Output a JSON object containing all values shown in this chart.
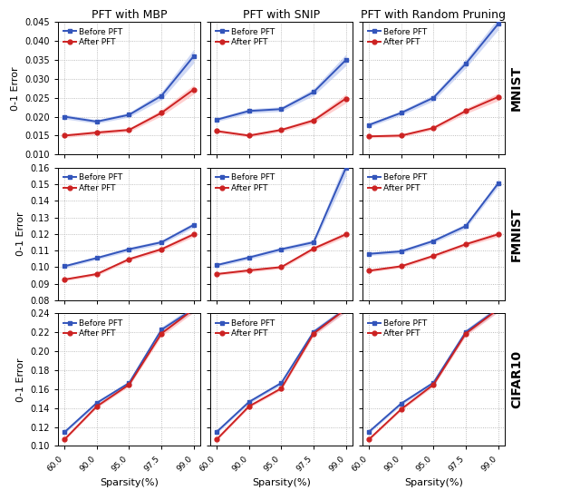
{
  "sparsity_labels": [
    "60.0",
    "90.0",
    "95.0",
    "97.5",
    "99.0"
  ],
  "col_titles": [
    "PFT with MBP",
    "PFT with SNIP",
    "PFT with Random Pruning"
  ],
  "row_labels": [
    "MNIST",
    "FMNIST",
    "CIFAR10"
  ],
  "xlabel": "Sparsity(%)",
  "ylabel": "0-1 Error",
  "blue_color": "#3355BB",
  "red_color": "#CC2222",
  "blue_fill": "#aabbee",
  "red_fill": "#ffaaaa",
  "data": {
    "MNIST": {
      "MBP": {
        "before_mean": [
          0.02,
          0.0187,
          0.0205,
          0.0255,
          0.036
        ],
        "before_std": [
          0.0006,
          0.0005,
          0.0006,
          0.001,
          0.0018
        ],
        "after_mean": [
          0.015,
          0.0158,
          0.0165,
          0.021,
          0.0272
        ],
        "after_std": [
          0.0005,
          0.0005,
          0.0005,
          0.0008,
          0.0012
        ]
      },
      "SNIP": {
        "before_mean": [
          0.0192,
          0.0215,
          0.022,
          0.0265,
          0.035
        ],
        "before_std": [
          0.0005,
          0.0006,
          0.0006,
          0.0009,
          0.0015
        ],
        "after_mean": [
          0.0162,
          0.015,
          0.0165,
          0.019,
          0.0248
        ],
        "after_std": [
          0.0004,
          0.0004,
          0.0005,
          0.0006,
          0.0012
        ]
      },
      "Random": {
        "before_mean": [
          0.0178,
          0.021,
          0.025,
          0.034,
          0.0445
        ],
        "before_std": [
          0.0005,
          0.0006,
          0.0008,
          0.0011,
          0.0016
        ],
        "after_mean": [
          0.0148,
          0.015,
          0.017,
          0.0215,
          0.0252
        ],
        "after_std": [
          0.0004,
          0.0004,
          0.0005,
          0.0007,
          0.001
        ]
      }
    },
    "FMNIST": {
      "MBP": {
        "before_mean": [
          0.1005,
          0.1055,
          0.1108,
          0.115,
          0.1255
        ],
        "before_std": [
          0.001,
          0.001,
          0.0012,
          0.0012,
          0.0015
        ],
        "after_mean": [
          0.0925,
          0.0958,
          0.1048,
          0.1108,
          0.1198
        ],
        "after_std": [
          0.0008,
          0.001,
          0.001,
          0.0012,
          0.0015
        ]
      },
      "SNIP": {
        "before_mean": [
          0.1012,
          0.1058,
          0.1108,
          0.115,
          0.16
        ],
        "before_std": [
          0.001,
          0.0012,
          0.0012,
          0.0015,
          0.005
        ],
        "after_mean": [
          0.0958,
          0.098,
          0.1,
          0.1112,
          0.1198
        ],
        "after_std": [
          0.0008,
          0.001,
          0.001,
          0.0012,
          0.0015
        ]
      },
      "Random": {
        "before_mean": [
          0.108,
          0.1095,
          0.1158,
          0.1248,
          0.1505
        ],
        "before_std": [
          0.001,
          0.0012,
          0.0012,
          0.0015,
          0.002
        ],
        "after_mean": [
          0.0978,
          0.1005,
          0.1068,
          0.1138,
          0.1198
        ],
        "after_std": [
          0.0008,
          0.001,
          0.001,
          0.0012,
          0.0015
        ]
      }
    },
    "CIFAR10": {
      "MBP": {
        "before_mean": [
          0.1145,
          0.1455,
          0.1665,
          0.2228,
          0.245
        ],
        "before_std": [
          0.0015,
          0.0018,
          0.002,
          0.003,
          0.0035
        ],
        "after_mean": [
          0.1068,
          0.1418,
          0.1648,
          0.2188,
          0.2445
        ],
        "after_std": [
          0.0012,
          0.0015,
          0.0018,
          0.0028,
          0.0033
        ]
      },
      "SNIP": {
        "before_mean": [
          0.1148,
          0.1465,
          0.1665,
          0.2205,
          0.245
        ],
        "before_std": [
          0.0015,
          0.0018,
          0.002,
          0.0028,
          0.0033
        ],
        "after_mean": [
          0.1068,
          0.1418,
          0.1608,
          0.2188,
          0.2448
        ],
        "after_std": [
          0.0012,
          0.0015,
          0.0018,
          0.0025,
          0.003
        ]
      },
      "Random": {
        "before_mean": [
          0.1148,
          0.1448,
          0.1668,
          0.2205,
          0.245
        ],
        "before_std": [
          0.0015,
          0.0018,
          0.002,
          0.0028,
          0.0033
        ],
        "after_mean": [
          0.1068,
          0.1388,
          0.1648,
          0.2188,
          0.2445
        ],
        "after_std": [
          0.0012,
          0.0015,
          0.0018,
          0.0025,
          0.003
        ]
      }
    }
  },
  "ylims": {
    "MNIST": [
      0.01,
      0.045
    ],
    "FMNIST": [
      0.08,
      0.16
    ],
    "CIFAR10": [
      0.1,
      0.24
    ]
  },
  "yticks": {
    "MNIST": [
      0.01,
      0.015,
      0.02,
      0.025,
      0.03,
      0.035,
      0.04,
      0.045
    ],
    "FMNIST": [
      0.08,
      0.09,
      0.1,
      0.11,
      0.12,
      0.13,
      0.14,
      0.15,
      0.16
    ],
    "CIFAR10": [
      0.1,
      0.12,
      0.14,
      0.16,
      0.18,
      0.2,
      0.22,
      0.24
    ]
  }
}
